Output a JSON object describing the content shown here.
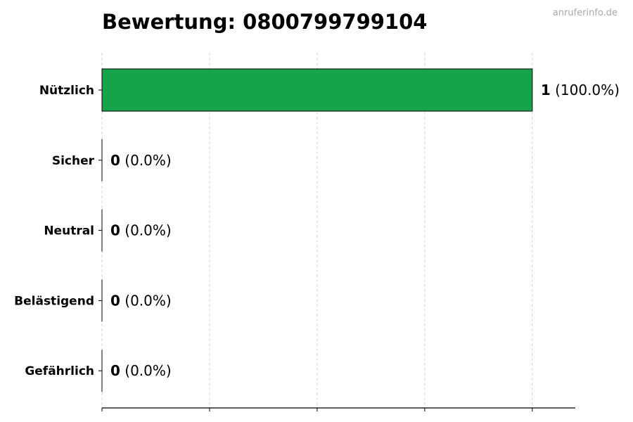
{
  "watermark": "anruferinfo.de",
  "chart_data": {
    "type": "bar",
    "orientation": "horizontal",
    "title": "Bewertung: 0800799799104",
    "xlabel": "",
    "ylabel": "",
    "categories": [
      "Nützlich",
      "Sicher",
      "Neutral",
      "Belästigend",
      "Gefährlich"
    ],
    "values": [
      1,
      0,
      0,
      0,
      0
    ],
    "value_labels": [
      "1",
      "0",
      "0",
      "0",
      "0"
    ],
    "percent_labels": [
      "(100.0%)",
      "(0.0%)",
      "(0.0%)",
      "(0.0%)",
      "(0.0%)"
    ],
    "xlim": [
      0,
      1.1
    ],
    "x_ticks": [
      0,
      0.25,
      0.5,
      0.75,
      1
    ],
    "x_tick_labels_shown": false,
    "grid": "x, dashed",
    "colors": {
      "bar": "#16a34a",
      "edge": "#000000",
      "grid": "#cccccc",
      "watermark": "#aaaaaa"
    }
  }
}
